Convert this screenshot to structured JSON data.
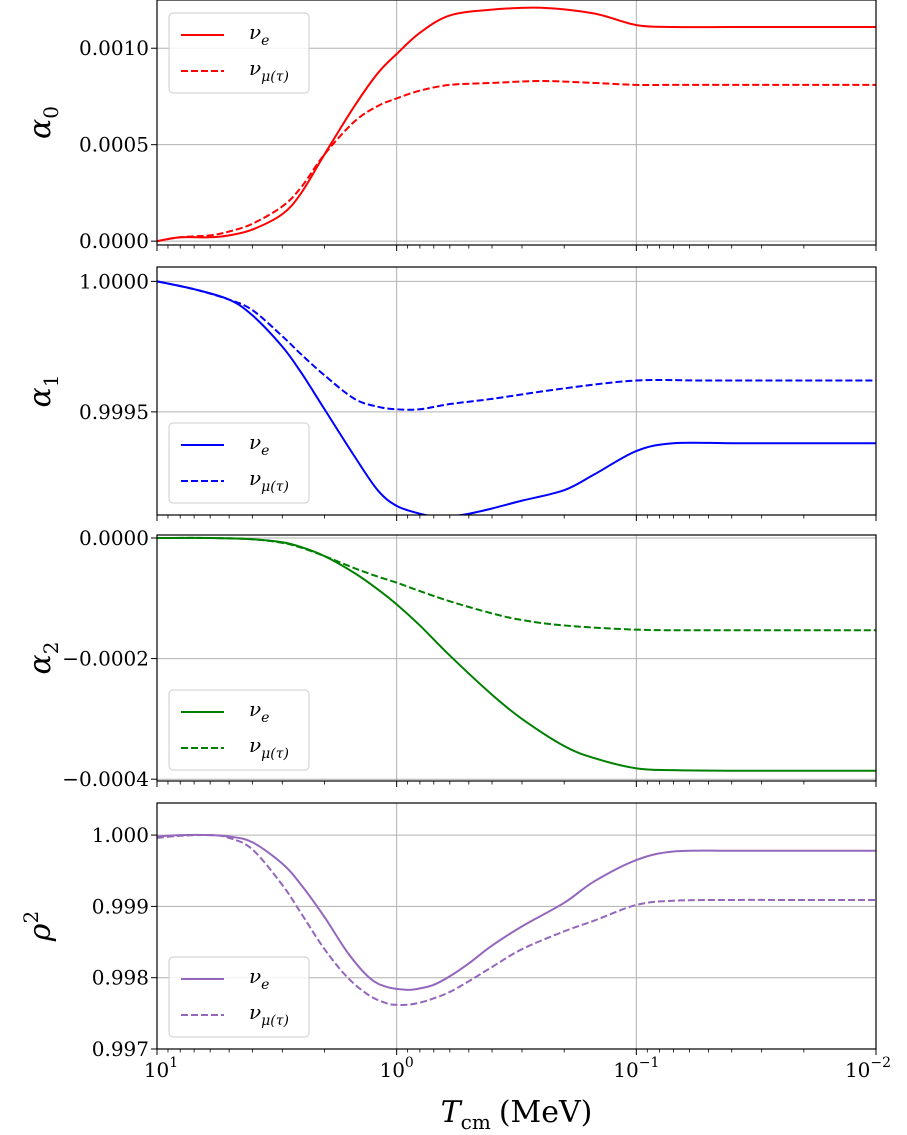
{
  "chart_data": [
    {
      "type": "line",
      "ylabel": "α",
      "ylabel_sub": "0",
      "xscale": "log",
      "xlim": [
        10,
        0.01
      ],
      "ylim": [
        -2e-05,
        0.00125
      ],
      "yticks": [
        0.0,
        0.0005,
        0.001
      ],
      "ytick_labels": [
        "0.0000",
        "0.0005",
        "0.0010"
      ],
      "grid": true,
      "legend_position": "top-left",
      "series": [
        {
          "name": "ν",
          "name_sub": "e",
          "color": "#ff0000",
          "style": "solid",
          "x": [
            10,
            8,
            6,
            5,
            4,
            3,
            2.5,
            2,
            1.5,
            1.2,
            1.0,
            0.8,
            0.6,
            0.4,
            0.25,
            0.15,
            0.1,
            0.07,
            0.04,
            0.02,
            0.01
          ],
          "y": [
            0.0,
            2e-05,
            2e-05,
            3e-05,
            6e-05,
            0.00014,
            0.00025,
            0.00045,
            0.0007,
            0.00087,
            0.00097,
            0.00108,
            0.00117,
            0.0012,
            0.00121,
            0.00118,
            0.00112,
            0.00111,
            0.00111,
            0.00111,
            0.00111
          ]
        },
        {
          "name": "ν",
          "name_sub": "μ(τ)",
          "color": "#ff0000",
          "style": "dashed",
          "x": [
            10,
            8,
            6,
            5,
            4,
            3,
            2.5,
            2,
            1.5,
            1.2,
            1.0,
            0.8,
            0.6,
            0.4,
            0.25,
            0.15,
            0.1,
            0.07,
            0.04,
            0.02,
            0.01
          ],
          "y": [
            0.0,
            2e-05,
            3e-05,
            5e-05,
            9e-05,
            0.00018,
            0.00028,
            0.00045,
            0.00062,
            0.0007,
            0.00074,
            0.00078,
            0.00081,
            0.00082,
            0.00083,
            0.00082,
            0.00081,
            0.00081,
            0.00081,
            0.00081,
            0.00081
          ]
        }
      ]
    },
    {
      "type": "line",
      "ylabel": "α",
      "ylabel_sub": "1",
      "xscale": "log",
      "xlim": [
        10,
        0.01
      ],
      "ylim": [
        0.999105,
        1.000055
      ],
      "yticks": [
        0.9995,
        1.0
      ],
      "ytick_labels": [
        "0.9995",
        "1.0000"
      ],
      "grid": true,
      "legend_position": "bottom-left",
      "series": [
        {
          "name": "ν",
          "name_sub": "e",
          "color": "#0000ff",
          "style": "solid",
          "x": [
            10,
            7,
            5,
            4,
            3,
            2.5,
            2,
            1.5,
            1.2,
            1.0,
            0.8,
            0.7,
            0.6,
            0.5,
            0.4,
            0.3,
            0.2,
            0.15,
            0.1,
            0.07,
            0.04,
            0.02,
            0.01
          ],
          "y": [
            1.0,
            0.99997,
            0.99993,
            0.99987,
            0.99975,
            0.99965,
            0.99951,
            0.99933,
            0.9992,
            0.99914,
            0.99911,
            0.9991,
            0.9991,
            0.99911,
            0.99913,
            0.99916,
            0.9992,
            0.99926,
            0.99935,
            0.99938,
            0.99938,
            0.99938,
            0.99938
          ]
        },
        {
          "name": "ν",
          "name_sub": "μ(τ)",
          "color": "#0000ff",
          "style": "dashed",
          "x": [
            10,
            7,
            5,
            4,
            3,
            2.5,
            2,
            1.5,
            1.2,
            1.0,
            0.8,
            0.6,
            0.4,
            0.2,
            0.1,
            0.05,
            0.02,
            0.01
          ],
          "y": [
            1.0,
            0.99997,
            0.99993,
            0.99989,
            0.99979,
            0.99972,
            0.99964,
            0.99955,
            0.99952,
            0.99951,
            0.99951,
            0.99953,
            0.99955,
            0.99959,
            0.99962,
            0.99962,
            0.99962,
            0.99962
          ]
        }
      ]
    },
    {
      "type": "line",
      "ylabel": "α",
      "ylabel_sub": "2",
      "xscale": "log",
      "xlim": [
        10,
        0.01
      ],
      "ylim": [
        -0.000403,
        5e-06
      ],
      "yticks": [
        -0.0004,
        -0.0002,
        0.0
      ],
      "ytick_labels": [
        "−0.0004",
        "−0.0002",
        "0.0000"
      ],
      "grid": true,
      "legend_position": "bottom-left",
      "series": [
        {
          "name": "ν",
          "name_sub": "e",
          "color": "#008000",
          "style": "solid",
          "x": [
            10,
            6,
            4,
            3,
            2.5,
            2,
            1.5,
            1.2,
            1.0,
            0.8,
            0.6,
            0.4,
            0.3,
            0.2,
            0.15,
            0.1,
            0.07,
            0.04,
            0.02,
            0.01
          ],
          "y": [
            0.0,
            0.0,
            -2e-06,
            -7e-06,
            -1.5e-05,
            -3e-05,
            -5.8e-05,
            -8.5e-05,
            -0.00011,
            -0.000145,
            -0.000195,
            -0.00026,
            -0.0003,
            -0.000345,
            -0.000365,
            -0.000382,
            -0.000385,
            -0.000386,
            -0.000386,
            -0.000386
          ]
        },
        {
          "name": "ν",
          "name_sub": "μ(τ)",
          "color": "#008000",
          "style": "dashed",
          "x": [
            10,
            6,
            4,
            3,
            2.5,
            2,
            1.5,
            1.2,
            1.0,
            0.8,
            0.6,
            0.4,
            0.3,
            0.2,
            0.1,
            0.05,
            0.02,
            0.01
          ],
          "y": [
            0.0,
            0.0,
            -2e-06,
            -8e-06,
            -1.6e-05,
            -3e-05,
            -5e-05,
            -6.4e-05,
            -7.4e-05,
            -8.8e-05,
            -0.000105,
            -0.000125,
            -0.000136,
            -0.000145,
            -0.000152,
            -0.000153,
            -0.000153,
            -0.000153
          ]
        }
      ]
    },
    {
      "type": "line",
      "ylabel": "ρ",
      "ylabel_sup": "2",
      "xscale": "log",
      "xlim": [
        10,
        0.01
      ],
      "ylim": [
        0.997,
        1.00045
      ],
      "yticks": [
        0.997,
        0.998,
        0.999,
        1.0
      ],
      "ytick_labels": [
        "0.997",
        "0.998",
        "0.999",
        "1.000"
      ],
      "xticks": [
        10,
        1,
        0.1,
        0.01
      ],
      "xtick_bases": [
        "10",
        "10",
        "10",
        "10"
      ],
      "xtick_exps": [
        "1",
        "0",
        "−1",
        "−2"
      ],
      "xlabel": "T",
      "xlabel_sub": "cm",
      "xlabel_unit": "(MeV)",
      "grid": true,
      "legend_position": "bottom-left",
      "series": [
        {
          "name": "ν",
          "name_sub": "e",
          "color": "#9467bd",
          "style": "solid",
          "x": [
            10,
            8,
            6,
            5,
            4,
            3,
            2.5,
            2,
            1.6,
            1.3,
            1.1,
            0.9,
            0.8,
            0.7,
            0.6,
            0.5,
            0.4,
            0.3,
            0.2,
            0.15,
            0.1,
            0.07,
            0.04,
            0.02,
            0.01
          ],
          "y": [
            0.99998,
            1.0,
            1.0,
            0.99998,
            0.9999,
            0.9996,
            0.9993,
            0.99885,
            0.99835,
            0.998,
            0.99787,
            0.99783,
            0.99785,
            0.9979,
            0.99802,
            0.9982,
            0.99845,
            0.99872,
            0.99905,
            0.99935,
            0.99965,
            0.99977,
            0.99978,
            0.99978,
            0.99978
          ]
        },
        {
          "name": "ν",
          "name_sub": "μ(τ)",
          "color": "#9467bd",
          "style": "dashed",
          "x": [
            10,
            8,
            6,
            5,
            4,
            3,
            2.5,
            2,
            1.6,
            1.3,
            1.1,
            1.0,
            0.9,
            0.8,
            0.7,
            0.6,
            0.5,
            0.4,
            0.3,
            0.2,
            0.15,
            0.1,
            0.07,
            0.04,
            0.02,
            0.01
          ],
          "y": [
            0.99996,
            0.99999,
            1.0,
            0.99996,
            0.9998,
            0.9993,
            0.9989,
            0.9984,
            0.998,
            0.99775,
            0.99764,
            0.99762,
            0.99762,
            0.99765,
            0.99771,
            0.9978,
            0.99795,
            0.99815,
            0.9984,
            0.99865,
            0.9988,
            0.99902,
            0.99908,
            0.99909,
            0.99909,
            0.99909
          ]
        }
      ]
    }
  ]
}
